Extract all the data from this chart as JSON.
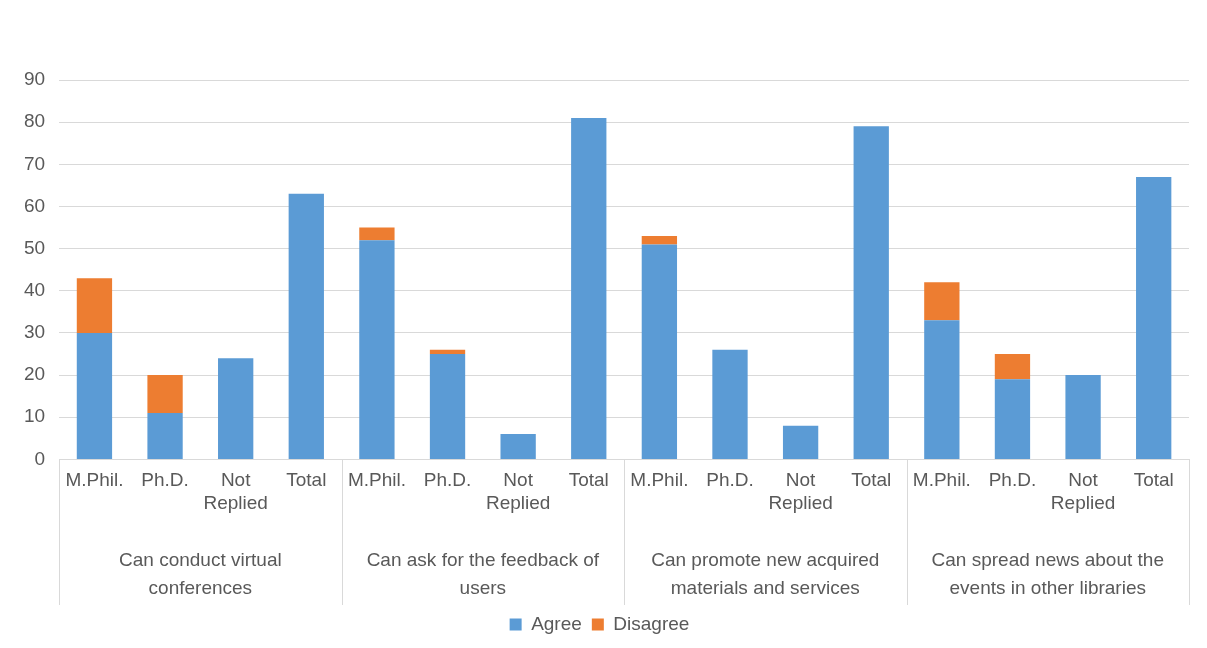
{
  "chart_data": {
    "type": "bar",
    "stacked": true,
    "categories": [
      "M.Phil.",
      "Ph.D.",
      "Not Replied",
      "Total",
      "M.Phil.",
      "Ph.D.",
      "Not Replied",
      "Total",
      "M.Phil.",
      "Ph.D.",
      "Not Replied",
      "Total",
      "M.Phil.",
      "Ph.D.",
      "Not Replied",
      "Total"
    ],
    "series": [
      {
        "name": "Agree",
        "color": "#5b9bd5",
        "values": [
          30,
          11,
          24,
          63,
          52,
          25,
          6,
          81,
          51,
          26,
          8,
          79,
          33,
          19,
          20,
          67
        ]
      },
      {
        "name": "Disagree",
        "color": "#ed7d31",
        "values": [
          13,
          9,
          null,
          null,
          3,
          1,
          null,
          null,
          2,
          null,
          null,
          null,
          9,
          6,
          null,
          null
        ]
      }
    ],
    "annotations": [
      "Can conduct virtual conferences",
      "Can ask for the feedback of users",
      "Can promote new acquired materials and services",
      "Can spread news about the events in other libraries"
    ],
    "ylim": [
      0,
      90
    ],
    "yticks": [
      0,
      10,
      20,
      30,
      40,
      50,
      60,
      70,
      80,
      90
    ],
    "grid": "y",
    "legend": "bottom"
  }
}
